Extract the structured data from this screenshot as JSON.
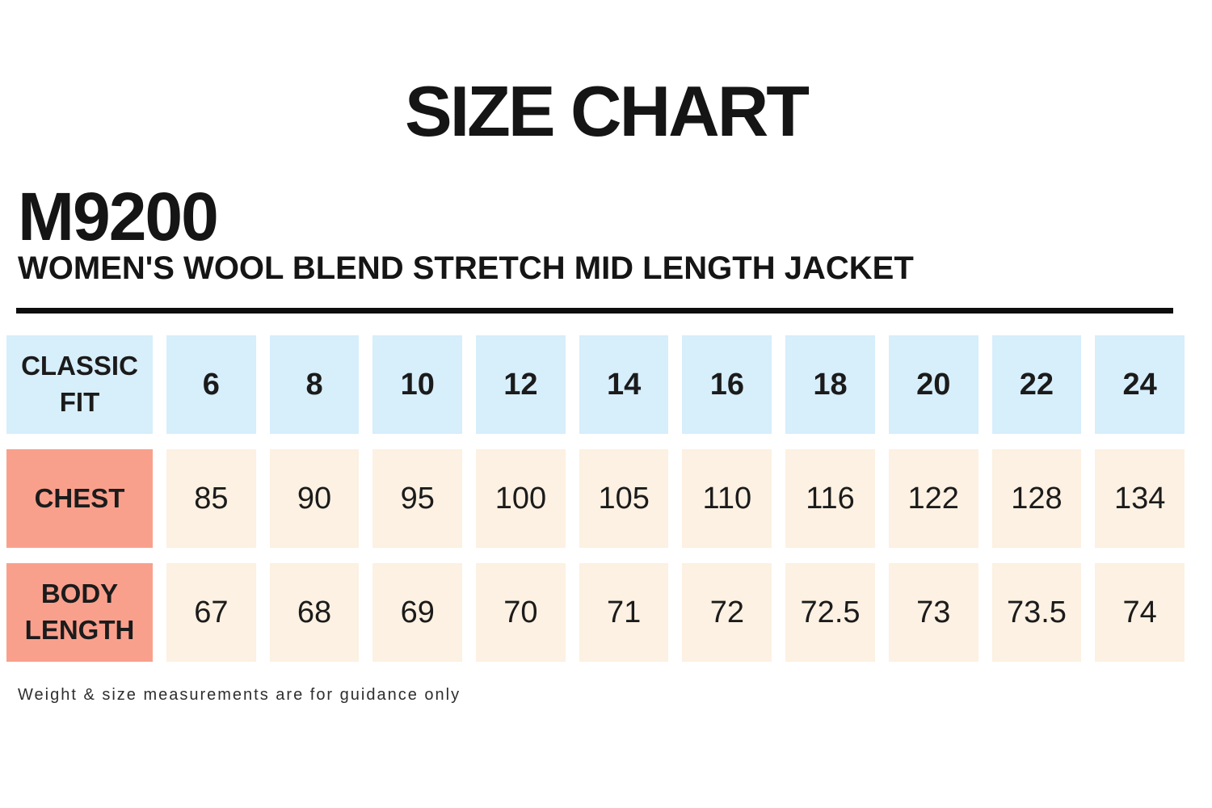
{
  "title": "SIZE CHART",
  "product": {
    "code": "M9200",
    "name": "WOMEN'S WOOL BLEND STRETCH MID LENGTH JACKET"
  },
  "footnote": "Weight & size measurements are for guidance only",
  "colors": {
    "header_cell_bg": "#d7eefb",
    "row_label_bg": "#f9a08d",
    "data_cell_bg": "#fcf1e2",
    "divider": "#0d0d0d",
    "text": "#1b1b1b"
  },
  "chart_data": {
    "type": "table",
    "title": "SIZE CHART",
    "header_row": {
      "label": "CLASSIC FIT",
      "sizes": [
        "6",
        "8",
        "10",
        "12",
        "14",
        "16",
        "18",
        "20",
        "22",
        "24"
      ]
    },
    "rows": [
      {
        "label": "CHEST",
        "values": [
          "85",
          "90",
          "95",
          "100",
          "105",
          "110",
          "116",
          "122",
          "128",
          "134"
        ]
      },
      {
        "label": "BODY LENGTH",
        "values": [
          "67",
          "68",
          "69",
          "70",
          "71",
          "72",
          "72.5",
          "73",
          "73.5",
          "74"
        ]
      }
    ]
  }
}
